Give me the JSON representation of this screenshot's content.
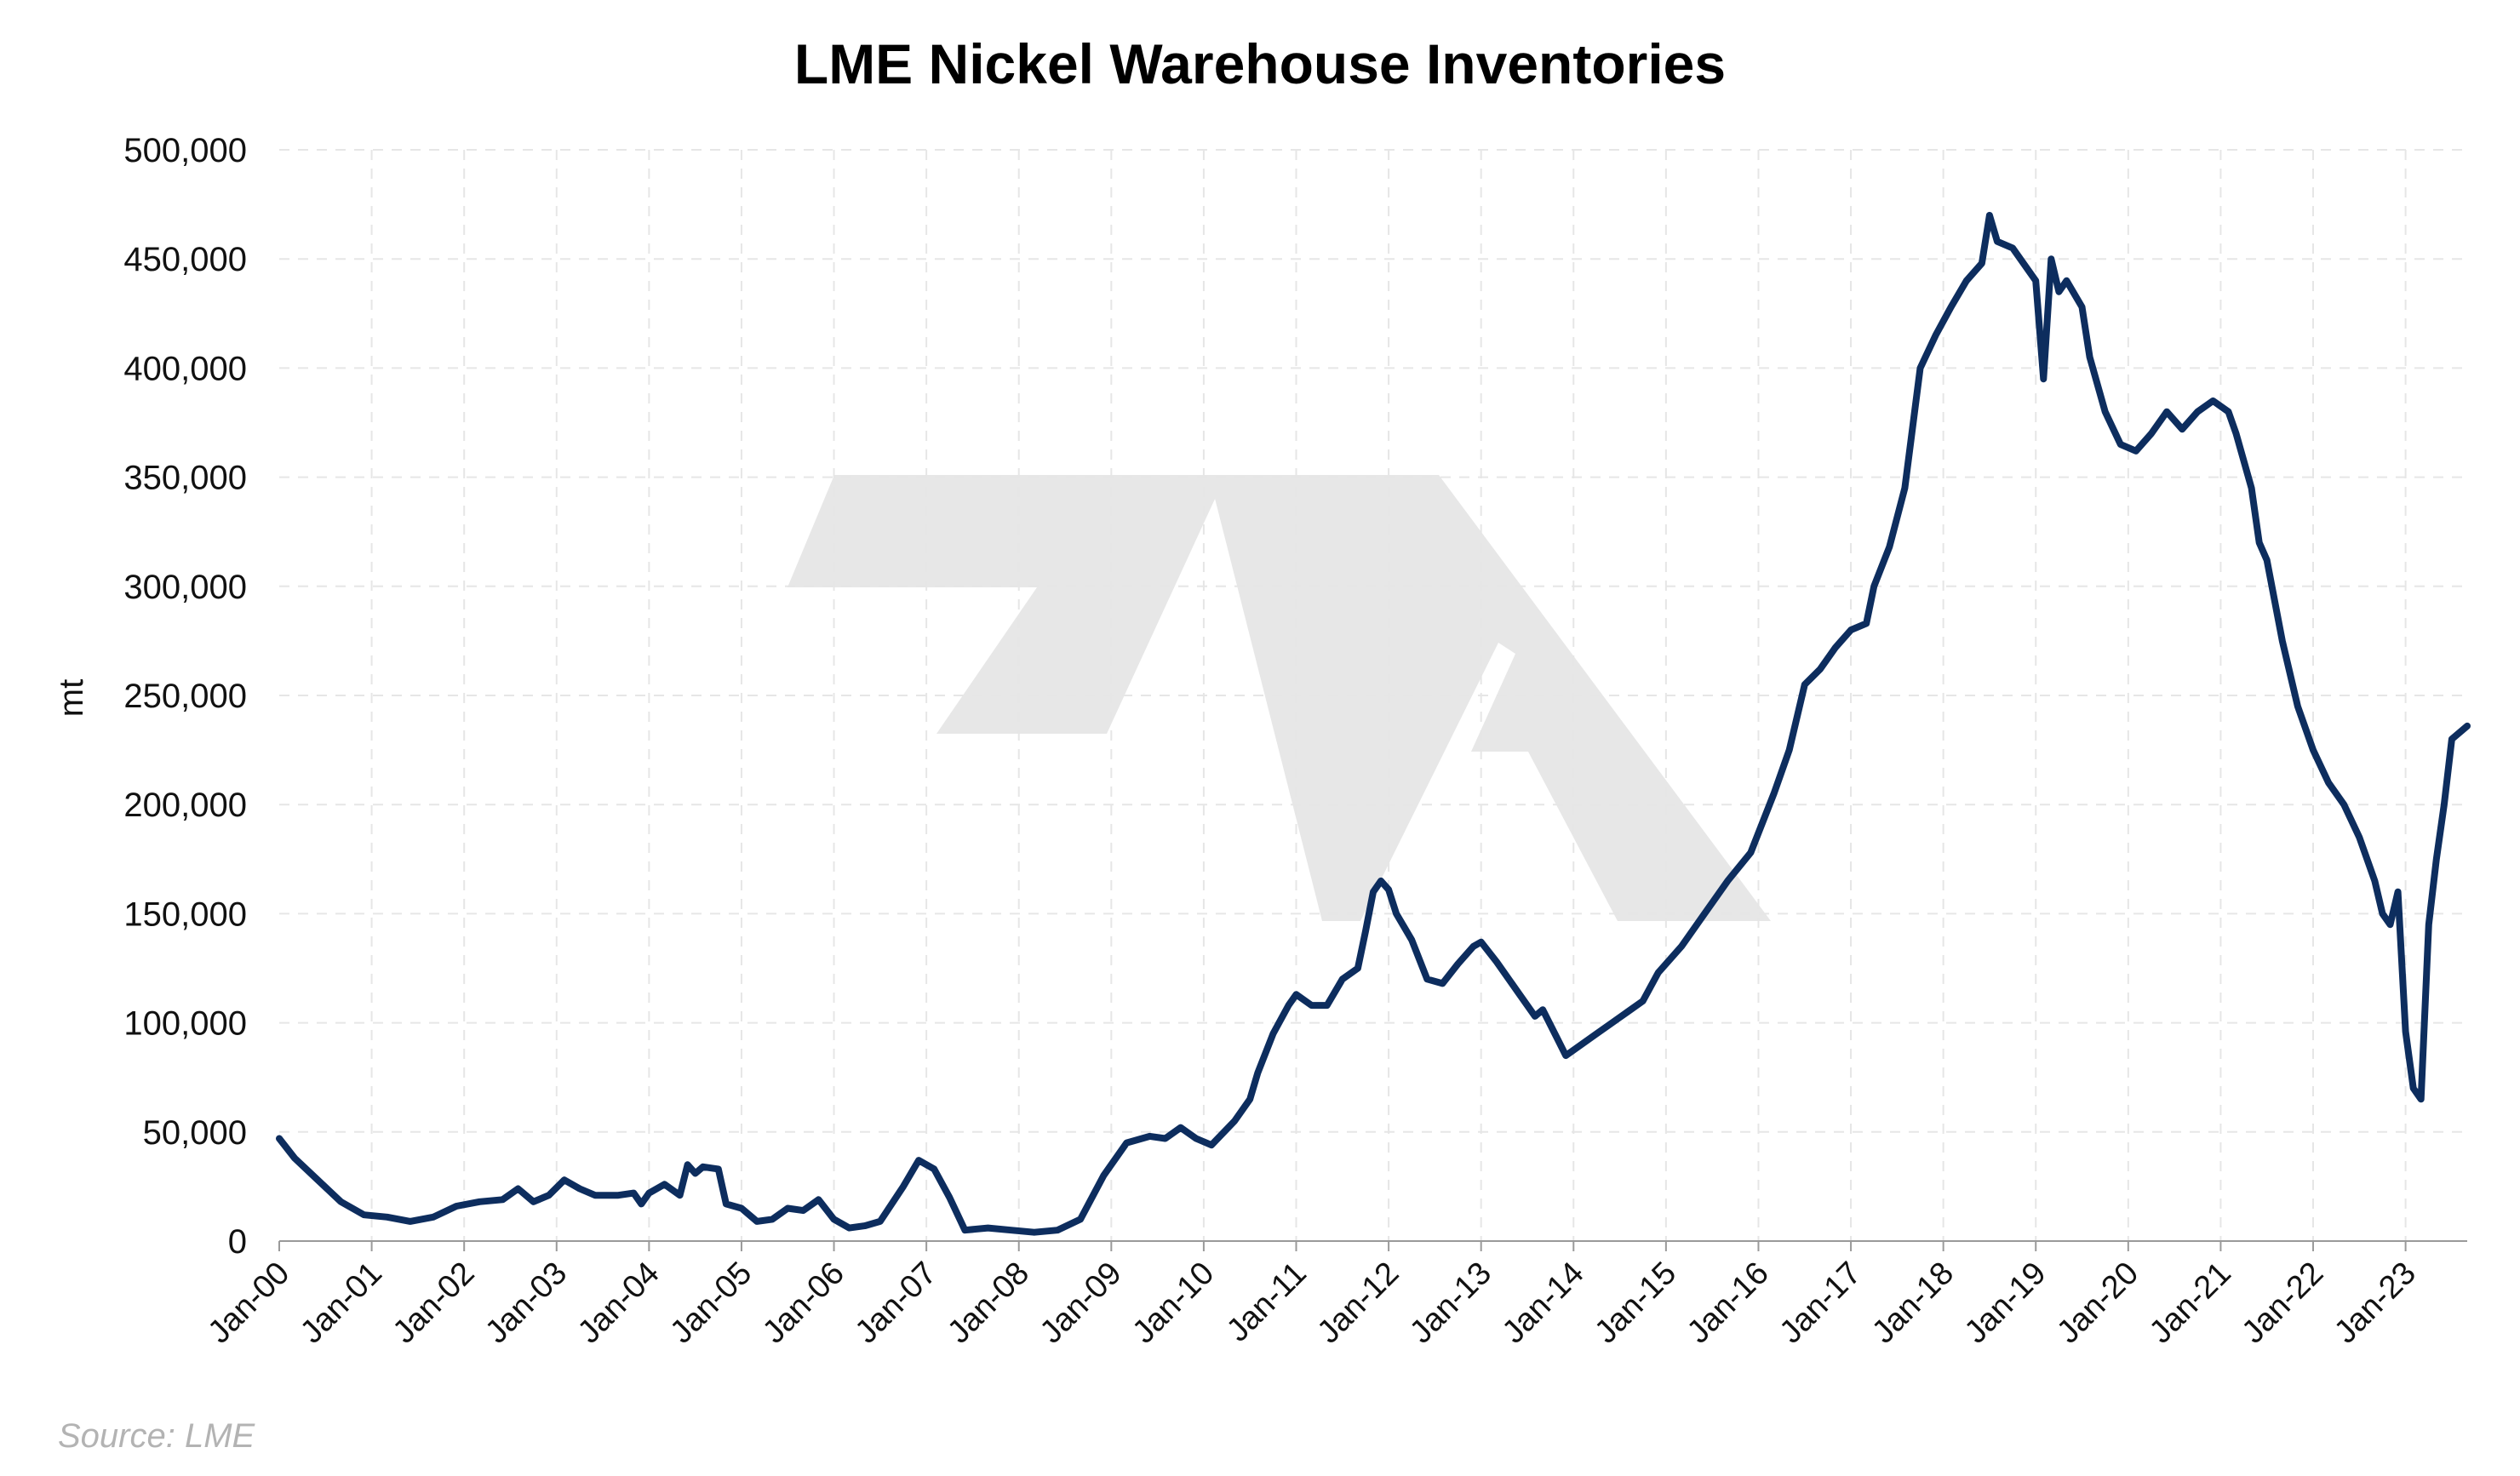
{
  "chart_data": {
    "type": "line",
    "title": "LME Nickel Warehouse Inventories",
    "xlabel": "",
    "ylabel": "mt",
    "source": "Source: LME",
    "x_tick_labels": [
      "Jan-00",
      "Jan-01",
      "Jan-02",
      "Jan-03",
      "Jan-04",
      "Jan-05",
      "Jan-06",
      "Jan-07",
      "Jan-08",
      "Jan-09",
      "Jan-10",
      "Jan-11",
      "Jan-12",
      "Jan-13",
      "Jan-14",
      "Jan-15",
      "Jan-16",
      "Jan-17",
      "Jan-18",
      "Jan-19",
      "Jan-20",
      "Jan-21",
      "Jan-22",
      "Jan-23"
    ],
    "y_tick_labels": [
      "0",
      "50,000",
      "100,000",
      "150,000",
      "200,000",
      "250,000",
      "300,000",
      "350,000",
      "400,000",
      "450,000",
      "500,000"
    ],
    "ylim": [
      0,
      500000
    ],
    "xlim": [
      "2000-01",
      "2023-09"
    ],
    "grid": true,
    "legend": "none",
    "series": [
      {
        "color": "#0d2d5e",
        "points": [
          [
            "2000-01",
            47000
          ],
          [
            "2000-03",
            38000
          ],
          [
            "2000-06",
            28000
          ],
          [
            "2000-09",
            18000
          ],
          [
            "2000-12",
            12000
          ],
          [
            "2001-03",
            11000
          ],
          [
            "2001-06",
            9000
          ],
          [
            "2001-09",
            11000
          ],
          [
            "2001-12",
            16000
          ],
          [
            "2002-03",
            18000
          ],
          [
            "2002-06",
            19000
          ],
          [
            "2002-08",
            24000
          ],
          [
            "2002-10",
            18000
          ],
          [
            "2002-12",
            21000
          ],
          [
            "2003-02",
            28000
          ],
          [
            "2003-04",
            24000
          ],
          [
            "2003-06",
            21000
          ],
          [
            "2003-09",
            21000
          ],
          [
            "2003-11",
            22000
          ],
          [
            "2003-12",
            17000
          ],
          [
            "2004-01",
            22000
          ],
          [
            "2004-03",
            26000
          ],
          [
            "2004-05",
            21000
          ],
          [
            "2004-06",
            35000
          ],
          [
            "2004-07",
            31000
          ],
          [
            "2004-08",
            34000
          ],
          [
            "2004-10",
            33000
          ],
          [
            "2004-11",
            17000
          ],
          [
            "2005-01",
            15000
          ],
          [
            "2005-03",
            9000
          ],
          [
            "2005-05",
            10000
          ],
          [
            "2005-07",
            15000
          ],
          [
            "2005-09",
            14000
          ],
          [
            "2005-11",
            19000
          ],
          [
            "2006-01",
            10000
          ],
          [
            "2006-03",
            6000
          ],
          [
            "2006-05",
            7000
          ],
          [
            "2006-07",
            9000
          ],
          [
            "2006-10",
            25000
          ],
          [
            "2006-12",
            37000
          ],
          [
            "2007-02",
            33000
          ],
          [
            "2007-04",
            20000
          ],
          [
            "2007-06",
            5000
          ],
          [
            "2007-09",
            6000
          ],
          [
            "2007-12",
            5000
          ],
          [
            "2008-03",
            4000
          ],
          [
            "2008-06",
            5000
          ],
          [
            "2008-09",
            10000
          ],
          [
            "2008-12",
            30000
          ],
          [
            "2009-03",
            45000
          ],
          [
            "2009-06",
            48000
          ],
          [
            "2009-08",
            47000
          ],
          [
            "2009-10",
            52000
          ],
          [
            "2009-12",
            47000
          ],
          [
            "2010-02",
            44000
          ],
          [
            "2010-05",
            55000
          ],
          [
            "2010-07",
            65000
          ],
          [
            "2010-08",
            77000
          ],
          [
            "2010-10",
            95000
          ],
          [
            "2010-12",
            108000
          ],
          [
            "2011-01",
            113000
          ],
          [
            "2011-03",
            108000
          ],
          [
            "2011-05",
            108000
          ],
          [
            "2011-07",
            120000
          ],
          [
            "2011-09",
            125000
          ],
          [
            "2011-10",
            142000
          ],
          [
            "2011-11",
            160000
          ],
          [
            "2011-12",
            165000
          ],
          [
            "2012-01",
            161000
          ],
          [
            "2012-02",
            150000
          ],
          [
            "2012-04",
            138000
          ],
          [
            "2012-06",
            120000
          ],
          [
            "2012-08",
            118000
          ],
          [
            "2012-10",
            127000
          ],
          [
            "2012-12",
            135000
          ],
          [
            "2013-01",
            137000
          ],
          [
            "2013-03",
            128000
          ],
          [
            "2013-06",
            113000
          ],
          [
            "2013-08",
            103000
          ],
          [
            "2013-09",
            106000
          ],
          [
            "2013-11",
            92000
          ],
          [
            "2013-12",
            85000
          ],
          [
            "2014-02",
            90000
          ],
          [
            "2014-04",
            95000
          ],
          [
            "2014-06",
            100000
          ],
          [
            "2014-08",
            105000
          ],
          [
            "2014-10",
            110000
          ],
          [
            "2014-12",
            123000
          ],
          [
            "2015-03",
            135000
          ],
          [
            "2015-06",
            150000
          ],
          [
            "2015-09",
            165000
          ],
          [
            "2015-12",
            178000
          ],
          [
            "2016-03",
            205000
          ],
          [
            "2016-05",
            225000
          ],
          [
            "2016-07",
            255000
          ],
          [
            "2016-09",
            262000
          ],
          [
            "2016-11",
            272000
          ],
          [
            "2017-01",
            280000
          ],
          [
            "2017-03",
            283000
          ],
          [
            "2017-04",
            300000
          ],
          [
            "2017-06",
            318000
          ],
          [
            "2017-08",
            345000
          ],
          [
            "2017-10",
            400000
          ],
          [
            "2017-12",
            415000
          ],
          [
            "2018-02",
            428000
          ],
          [
            "2018-04",
            440000
          ],
          [
            "2018-06",
            448000
          ],
          [
            "2018-07",
            470000
          ],
          [
            "2018-08",
            458000
          ],
          [
            "2018-10",
            455000
          ],
          [
            "2018-11",
            450000
          ],
          [
            "2019-01",
            440000
          ],
          [
            "2019-02",
            395000
          ],
          [
            "2019-03",
            450000
          ],
          [
            "2019-04",
            435000
          ],
          [
            "2019-05",
            440000
          ],
          [
            "2019-07",
            428000
          ],
          [
            "2019-08",
            405000
          ],
          [
            "2019-10",
            380000
          ],
          [
            "2019-12",
            365000
          ],
          [
            "2020-02",
            362000
          ],
          [
            "2020-04",
            370000
          ],
          [
            "2020-06",
            380000
          ],
          [
            "2020-08",
            372000
          ],
          [
            "2020-10",
            380000
          ],
          [
            "2020-12",
            385000
          ],
          [
            "2021-02",
            380000
          ],
          [
            "2021-03",
            370000
          ],
          [
            "2021-05",
            345000
          ],
          [
            "2021-06",
            320000
          ],
          [
            "2021-07",
            312000
          ],
          [
            "2021-09",
            275000
          ],
          [
            "2021-11",
            245000
          ],
          [
            "2022-01",
            225000
          ],
          [
            "2022-03",
            210000
          ],
          [
            "2022-05",
            200000
          ],
          [
            "2022-07",
            185000
          ],
          [
            "2022-09",
            165000
          ],
          [
            "2022-10",
            150000
          ],
          [
            "2022-11",
            145000
          ],
          [
            "2022-12",
            160000
          ],
          [
            "2023-01",
            96000
          ],
          [
            "2023-02",
            70000
          ],
          [
            "2023-03",
            65000
          ],
          [
            "2023-04",
            145000
          ],
          [
            "2023-05",
            175000
          ],
          [
            "2023-06",
            200000
          ],
          [
            "2023-07",
            230000
          ],
          [
            "2023-09",
            236000
          ]
        ]
      }
    ]
  }
}
